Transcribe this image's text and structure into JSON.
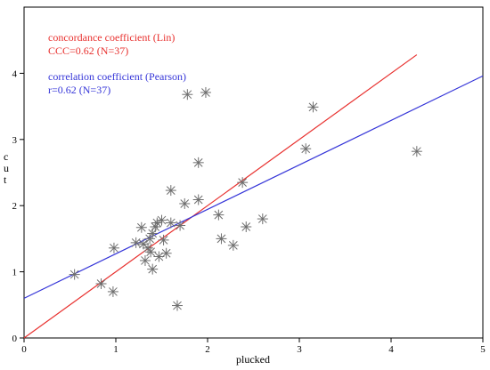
{
  "chart_data": {
    "type": "scatter",
    "title": "",
    "xlabel": "plucked",
    "ylabel": "cut",
    "xlim": [
      0,
      5
    ],
    "ylim": [
      0,
      5
    ],
    "xticks": [
      "0",
      "1",
      "2",
      "3",
      "4",
      "5"
    ],
    "yticks": [
      "0",
      "1",
      "2",
      "3",
      "4"
    ],
    "grid": false,
    "legend": "none",
    "marker": "asterisk",
    "marker_color": "#6e6e6e",
    "points": [
      {
        "x": 0.55,
        "y": 0.96
      },
      {
        "x": 0.84,
        "y": 0.82
      },
      {
        "x": 0.97,
        "y": 0.7
      },
      {
        "x": 0.98,
        "y": 1.36
      },
      {
        "x": 1.22,
        "y": 1.44
      },
      {
        "x": 1.28,
        "y": 1.67
      },
      {
        "x": 1.32,
        "y": 1.17
      },
      {
        "x": 1.35,
        "y": 1.36
      },
      {
        "x": 1.37,
        "y": 1.5
      },
      {
        "x": 1.38,
        "y": 1.3
      },
      {
        "x": 1.4,
        "y": 1.04
      },
      {
        "x": 1.4,
        "y": 1.58
      },
      {
        "x": 1.43,
        "y": 1.68
      },
      {
        "x": 1.45,
        "y": 1.74
      },
      {
        "x": 1.47,
        "y": 1.23
      },
      {
        "x": 1.5,
        "y": 1.78
      },
      {
        "x": 1.52,
        "y": 1.48
      },
      {
        "x": 1.55,
        "y": 1.28
      },
      {
        "x": 1.6,
        "y": 1.74
      },
      {
        "x": 1.6,
        "y": 2.23
      },
      {
        "x": 1.67,
        "y": 0.49
      },
      {
        "x": 1.7,
        "y": 1.7
      },
      {
        "x": 1.75,
        "y": 2.03
      },
      {
        "x": 1.78,
        "y": 3.68
      },
      {
        "x": 1.9,
        "y": 2.65
      },
      {
        "x": 1.9,
        "y": 2.09
      },
      {
        "x": 1.98,
        "y": 3.71
      },
      {
        "x": 2.12,
        "y": 1.86
      },
      {
        "x": 2.15,
        "y": 1.5
      },
      {
        "x": 2.28,
        "y": 1.4
      },
      {
        "x": 2.38,
        "y": 2.35
      },
      {
        "x": 2.42,
        "y": 1.68
      },
      {
        "x": 2.6,
        "y": 1.8
      },
      {
        "x": 3.07,
        "y": 2.86
      },
      {
        "x": 3.15,
        "y": 3.49
      },
      {
        "x": 4.28,
        "y": 2.82
      },
      {
        "x": 1.3,
        "y": 1.42
      }
    ],
    "lines": [
      {
        "name": "concordance",
        "color": "#e8312f",
        "x": [
          0,
          4.28
        ],
        "y": [
          0,
          4.28
        ]
      },
      {
        "name": "correlation",
        "color": "#3535d8",
        "x": [
          0,
          5
        ],
        "y": [
          0.6,
          3.96
        ]
      }
    ],
    "annotations": [
      {
        "line1": "concordance coefficient (Lin)",
        "line2": "CCC=0.62 (N=37)",
        "color": "#e8312f"
      },
      {
        "line1": "correlation coefficient (Pearson)",
        "line2": "r=0.62 (N=37)",
        "color": "#3535d8"
      }
    ]
  }
}
